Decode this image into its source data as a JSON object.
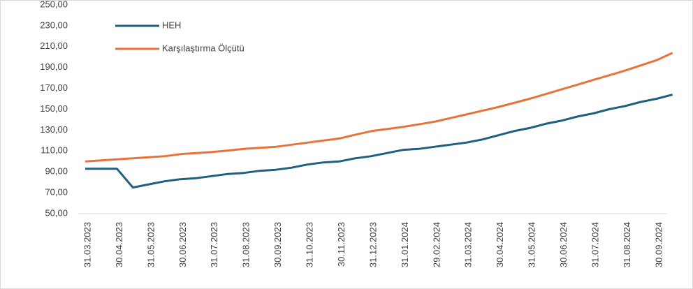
{
  "chart_data": {
    "type": "line",
    "categories": [
      "31.03.2023",
      null,
      "30.04.2023",
      null,
      "31.05.2023",
      null,
      "30.06.2023",
      null,
      "31.07.2023",
      null,
      "31.08.2023",
      null,
      "30.09.2023",
      null,
      "31.10.2023",
      null,
      "30.11.2023",
      null,
      "31.12.2023",
      null,
      "31.01.2024",
      null,
      "29.02.2024",
      null,
      "31.03.2024",
      null,
      "30.04.2024",
      null,
      "31.05.2024",
      null,
      "30.06.2024",
      null,
      "31.07.2024",
      null,
      "31.08.2024",
      null,
      "30.09.2024",
      null
    ],
    "series": [
      {
        "name": "HEH",
        "color": "#1f5f7f",
        "values": [
          93,
          93,
          93,
          75,
          78,
          81,
          83,
          84,
          86,
          88,
          89,
          91,
          92,
          94,
          97,
          99,
          100,
          103,
          105,
          108,
          111,
          112,
          114,
          116,
          118,
          121,
          125,
          129,
          132,
          136,
          139,
          143,
          146,
          150,
          153,
          157,
          160,
          164
        ]
      },
      {
        "name": "Karşılaştırma Ölçütü",
        "color": "#e8733a",
        "values": [
          100,
          101,
          102,
          103,
          104,
          105,
          107,
          108,
          109,
          110.5,
          112,
          113,
          114,
          116,
          118,
          120,
          122,
          125.5,
          129,
          131,
          133,
          135.5,
          138,
          141.5,
          145,
          148.5,
          152,
          156,
          160,
          164.5,
          169,
          173.5,
          178,
          182.5,
          187,
          192,
          197,
          204
        ]
      }
    ],
    "ylim": [
      50,
      250
    ],
    "yticks": [
      {
        "value": 50,
        "label": "50,00"
      },
      {
        "value": 70,
        "label": "70,00"
      },
      {
        "value": 90,
        "label": "90,00"
      },
      {
        "value": 110,
        "label": "110,00"
      },
      {
        "value": 130,
        "label": "130,00"
      },
      {
        "value": 150,
        "label": "150,00"
      },
      {
        "value": 170,
        "label": "170,00"
      },
      {
        "value": 190,
        "label": "190,00"
      },
      {
        "value": 210,
        "label": "210,00"
      },
      {
        "value": 230,
        "label": "230,00"
      },
      {
        "value": 250,
        "label": "250,00"
      }
    ],
    "legend": "upper left",
    "grid": false
  }
}
